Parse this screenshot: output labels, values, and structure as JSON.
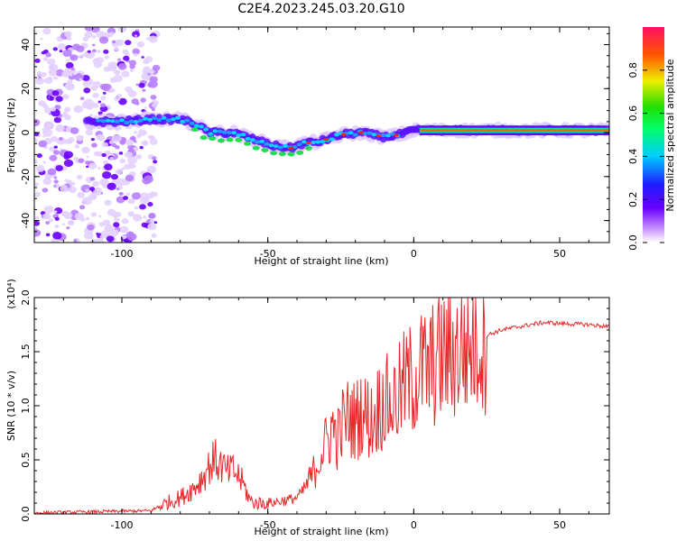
{
  "title": "C2E4.2023.245.03.20.G10",
  "chart_data": [
    {
      "type": "heatmap",
      "xlabel": "Height of straight line (km)",
      "ylabel": "Frequency (Hz)",
      "xlim": [
        -130,
        67
      ],
      "ylim": [
        -50,
        48
      ],
      "xticks": [
        -100,
        -50,
        0,
        50
      ],
      "yticks": [
        -40,
        -20,
        0,
        20,
        40
      ],
      "colorbar": {
        "label": "Normalized spectral amplitude",
        "range": [
          0,
          1
        ],
        "ticks": [
          "0.0",
          "0.2",
          "0.4",
          "0.6",
          "0.8"
        ]
      },
      "ridge": {
        "x": [
          -112,
          -100,
          -90,
          -80,
          -75,
          -70,
          -62,
          -55,
          -48,
          -42,
          -38,
          -32,
          -25,
          -18,
          -10,
          -5,
          0,
          5,
          20,
          40,
          67
        ],
        "y": [
          5,
          5,
          6,
          6,
          4,
          0,
          0,
          -3,
          -6,
          -7,
          -5,
          -4,
          -1,
          0,
          -2,
          -1,
          1,
          1,
          1,
          1,
          1
        ]
      }
    },
    {
      "type": "line",
      "xlabel": "Height of straight line (km)",
      "ylabel": "SNR (10 * v/v)",
      "y_multiplier": "(x10⁴)",
      "xlim": [
        -130,
        67
      ],
      "ylim": [
        0,
        2.0
      ],
      "xticks": [
        -100,
        -50,
        0,
        50
      ],
      "yticks": [
        "0.0",
        "0.5",
        "1.0",
        "1.5",
        "2.0"
      ],
      "series": [
        {
          "color": "#e8272a",
          "x": [
            -130,
            -110,
            -90,
            -85,
            -80,
            -75,
            -72,
            -70,
            -68,
            -66,
            -64,
            -62,
            -60,
            -58,
            -56,
            -54,
            -50,
            -45,
            -40,
            -37,
            -34,
            -32,
            -30,
            -28,
            -26,
            -24,
            -22,
            -20,
            -18,
            -16,
            -14,
            -12,
            -10,
            -8,
            -5,
            -3,
            0,
            3,
            5,
            7,
            10,
            15,
            20,
            25,
            30,
            40,
            45,
            50,
            60,
            67
          ],
          "y": [
            0.01,
            0.02,
            0.03,
            0.1,
            0.15,
            0.25,
            0.35,
            0.45,
            0.5,
            0.45,
            0.38,
            0.4,
            0.35,
            0.25,
            0.12,
            0.1,
            0.1,
            0.12,
            0.15,
            0.25,
            0.4,
            0.55,
            0.65,
            0.8,
            0.7,
            0.85,
            0.9,
            0.85,
            0.95,
            0.9,
            0.85,
            1.0,
            1.05,
            1.0,
            1.1,
            1.2,
            1.25,
            1.35,
            1.3,
            1.4,
            1.45,
            1.5,
            1.58,
            1.65,
            1.7,
            1.75,
            1.77,
            1.76,
            1.75,
            1.73
          ]
        }
      ]
    }
  ]
}
